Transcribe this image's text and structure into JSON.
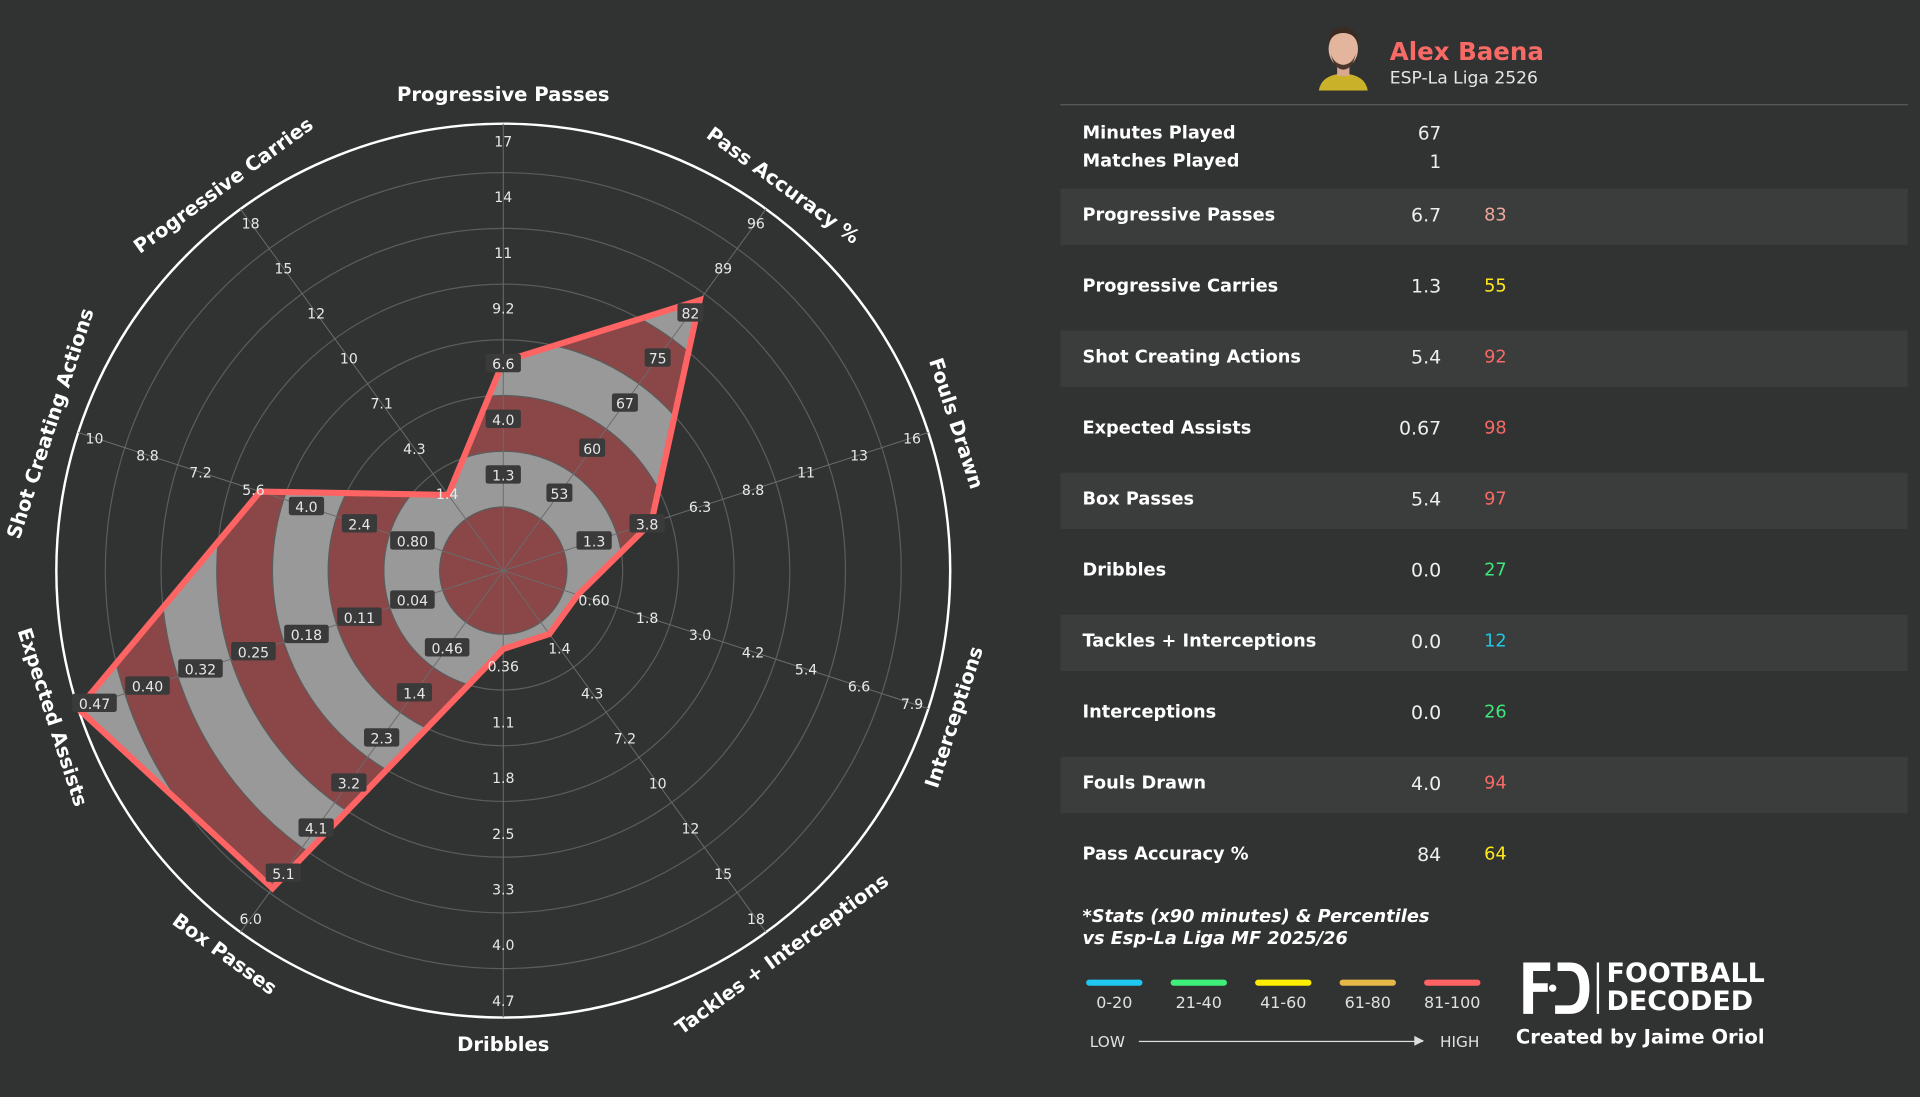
{
  "player": {
    "name": "Alex Baena",
    "league": "ESP-La Liga 2526"
  },
  "summary": [
    {
      "label": "Minutes Played",
      "value": "67"
    },
    {
      "label": "Matches Played",
      "value": "1"
    }
  ],
  "stats": [
    {
      "label": "Progressive Passes",
      "value": "6.7",
      "percentile": "83",
      "color": "#efa79c"
    },
    {
      "label": "Progressive Carries",
      "value": "1.3",
      "percentile": "55",
      "color": "#ffe81a"
    },
    {
      "label": "Shot Creating Actions",
      "value": "5.4",
      "percentile": "92",
      "color": "#f86a66"
    },
    {
      "label": "Expected Assists",
      "value": "0.67",
      "percentile": "98",
      "color": "#f86a66"
    },
    {
      "label": "Box Passes",
      "value": "5.4",
      "percentile": "97",
      "color": "#f86a66"
    },
    {
      "label": "Dribbles",
      "value": "0.0",
      "percentile": "27",
      "color": "#3ee87a"
    },
    {
      "label": "Tackles + Interceptions",
      "value": "0.0",
      "percentile": "12",
      "color": "#1ec8e0"
    },
    {
      "label": "Interceptions",
      "value": "0.0",
      "percentile": "26",
      "color": "#3ee87a"
    },
    {
      "label": "Fouls Drawn",
      "value": "4.0",
      "percentile": "94",
      "color": "#f86a66"
    },
    {
      "label": "Pass Accuracy %",
      "value": "84",
      "percentile": "64",
      "color": "#ffe81a"
    }
  ],
  "footnote": {
    "line1": "*Stats (x90 minutes) & Percentiles",
    "line2": "vs Esp-La Liga MF 2025/26"
  },
  "legend": [
    {
      "label": "0-20",
      "color": "#1ec8f0"
    },
    {
      "label": "21-40",
      "color": "#3ef07a"
    },
    {
      "label": "41-60",
      "color": "#ffee00"
    },
    {
      "label": "61-80",
      "color": "#e6b84a"
    },
    {
      "label": "81-100",
      "color": "#ff6363"
    }
  ],
  "scale": {
    "low": "LOW",
    "high": "HIGH"
  },
  "logo": {
    "line1": "FOOTBALL",
    "line2": "DECODED"
  },
  "credit": "Created by Jaime Oriol",
  "colors": {
    "background": "#313332",
    "band_red": "#8b4747",
    "band_gray": "#999999",
    "outline": "#ff6464"
  },
  "chart_data": {
    "type": "radar",
    "axes": [
      {
        "label": "Progressive Passes",
        "value": 6.7,
        "ticks": [
          "1.3",
          "4.0",
          "6.6",
          "9.2",
          "11",
          "14",
          "17"
        ]
      },
      {
        "label": "Pass Accuracy %",
        "value": 84,
        "ticks": [
          "53",
          "60",
          "67",
          "75",
          "82",
          "89",
          "96"
        ]
      },
      {
        "label": "Fouls Drawn",
        "value": 4.0,
        "ticks": [
          "1.3",
          "3.8",
          "6.3",
          "8.8",
          "11",
          "13",
          "16"
        ]
      },
      {
        "label": "Interceptions",
        "value": 0.0,
        "ticks": [
          "0.60",
          "1.8",
          "3.0",
          "4.2",
          "5.4",
          "6.6",
          "7.9"
        ]
      },
      {
        "label": "Tackles + Interceptions",
        "value": 0.0,
        "ticks": [
          "1.4",
          "4.3",
          "7.2",
          "10",
          "12",
          "15",
          "18"
        ]
      },
      {
        "label": "Dribbles",
        "value": 0.0,
        "ticks": [
          "0.36",
          "1.1",
          "1.8",
          "2.5",
          "3.3",
          "4.0",
          "4.7"
        ]
      },
      {
        "label": "Box Passes",
        "value": 5.4,
        "ticks": [
          "0.46",
          "1.4",
          "2.3",
          "3.2",
          "4.1",
          "5.1",
          "6.0"
        ]
      },
      {
        "label": "Expected Assists",
        "value": 0.67,
        "ticks": [
          "0.04",
          "0.11",
          "0.18",
          "0.25",
          "0.32",
          "0.40",
          "0.47"
        ]
      },
      {
        "label": "Shot Creating Actions",
        "value": 5.4,
        "ticks": [
          "0.80",
          "2.4",
          "4.0",
          "5.6",
          "7.2",
          "8.8",
          "10"
        ]
      },
      {
        "label": "Progressive Carries",
        "value": 1.3,
        "ticks": [
          "1.4",
          "4.3",
          "7.1",
          "10",
          "12",
          "15",
          "18"
        ]
      }
    ]
  }
}
